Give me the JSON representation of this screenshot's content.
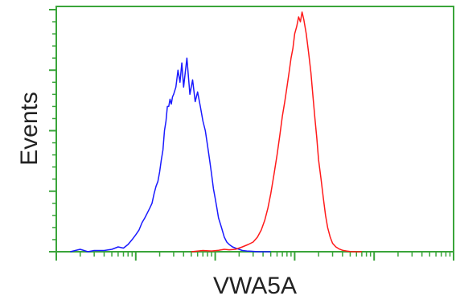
{
  "chart_data": {
    "type": "line",
    "title": "",
    "xlabel": "VWA5A",
    "ylabel": "Events",
    "xscale": "log",
    "xlim": [
      0.1,
      10000
    ],
    "ylim": [
      0,
      1.0
    ],
    "grid": false,
    "legend": "none",
    "axis_color": "#3aa53a",
    "series": [
      {
        "color": "#1a1aff",
        "x": [
          0.15,
          0.2,
          0.25,
          0.3,
          0.4,
          0.5,
          0.6,
          0.7,
          0.8,
          0.9,
          1.0,
          1.1,
          1.2,
          1.3,
          1.4,
          1.5,
          1.6,
          1.7,
          1.8,
          1.9,
          2.0,
          2.1,
          2.2,
          2.3,
          2.4,
          2.5,
          2.6,
          2.7,
          2.8,
          2.9,
          3.0,
          3.2,
          3.4,
          3.6,
          3.8,
          4.0,
          4.4,
          4.8,
          5.2,
          5.6,
          6.0,
          6.5,
          7.0,
          7.5,
          8.0,
          8.5,
          9.0,
          9.5,
          10.0,
          10.5,
          11.0,
          12.0,
          13.0,
          14.0,
          15.0,
          16.5,
          18.0,
          20.0,
          22.0,
          25.0,
          28.0,
          32.0,
          36.0,
          40.0,
          45.0,
          50.0
        ],
        "values": [
          0.0,
          0.01,
          0.0,
          0.005,
          0.005,
          0.01,
          0.02,
          0.015,
          0.03,
          0.05,
          0.07,
          0.09,
          0.12,
          0.14,
          0.16,
          0.18,
          0.2,
          0.24,
          0.27,
          0.29,
          0.33,
          0.38,
          0.42,
          0.5,
          0.54,
          0.6,
          0.6,
          0.63,
          0.61,
          0.64,
          0.65,
          0.68,
          0.75,
          0.7,
          0.78,
          0.68,
          0.8,
          0.65,
          0.71,
          0.62,
          0.66,
          0.6,
          0.54,
          0.5,
          0.44,
          0.38,
          0.32,
          0.26,
          0.22,
          0.18,
          0.14,
          0.1,
          0.06,
          0.04,
          0.03,
          0.02,
          0.015,
          0.01,
          0.005,
          0.003,
          0.002,
          0.001,
          0.0,
          0.0,
          0.0,
          0.0
        ]
      },
      {
        "color": "#ff1a1a",
        "x": [
          5,
          7,
          9,
          11,
          13,
          15,
          18,
          22,
          26,
          30,
          34,
          38,
          42,
          46,
          50,
          55,
          60,
          65,
          70,
          75,
          80,
          85,
          90,
          95,
          100,
          106,
          112,
          118,
          124,
          130,
          140,
          150,
          160,
          170,
          180,
          190,
          200,
          215,
          230,
          245,
          260,
          280,
          300,
          330,
          360,
          400,
          450,
          500,
          600,
          700
        ],
        "values": [
          0.0,
          0.005,
          0.003,
          0.006,
          0.01,
          0.008,
          0.01,
          0.02,
          0.03,
          0.04,
          0.06,
          0.09,
          0.13,
          0.18,
          0.24,
          0.32,
          0.4,
          0.48,
          0.56,
          0.62,
          0.68,
          0.74,
          0.8,
          0.84,
          0.9,
          0.93,
          0.97,
          0.95,
          0.99,
          0.96,
          0.9,
          0.82,
          0.74,
          0.64,
          0.55,
          0.47,
          0.38,
          0.3,
          0.22,
          0.15,
          0.1,
          0.06,
          0.035,
          0.02,
          0.012,
          0.006,
          0.003,
          0.001,
          0.0,
          0.0
        ]
      }
    ]
  }
}
